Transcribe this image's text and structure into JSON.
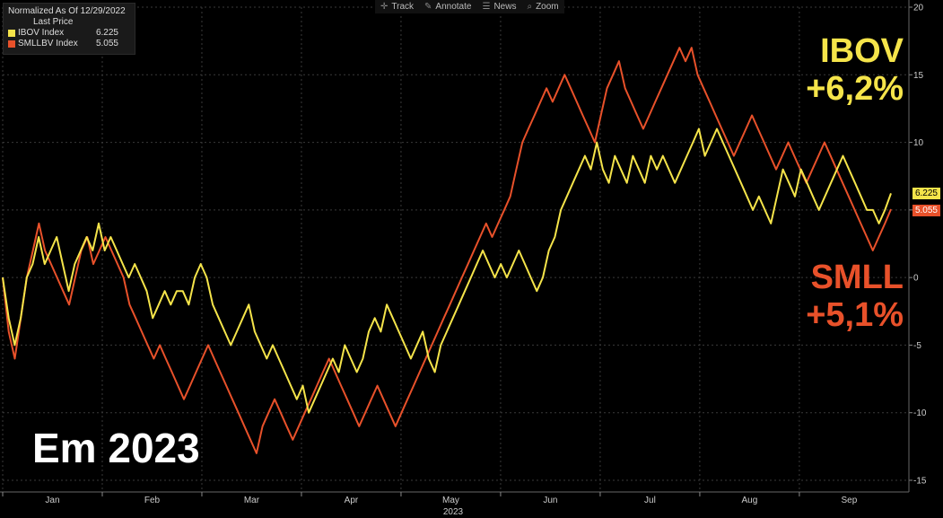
{
  "legend": {
    "heading": "Normalized As Of 12/29/2022",
    "subheading": "Last Price",
    "items": [
      {
        "name": "IBOV Index",
        "value": "6.225",
        "color": "#f5e44a"
      },
      {
        "name": "SMLLBV Index",
        "value": "5.055",
        "color": "#e8512a"
      }
    ]
  },
  "toolbar": {
    "items": [
      {
        "label": "Track",
        "icon": "crosshair-icon",
        "glyph": "✛"
      },
      {
        "label": "Annotate",
        "icon": "pencil-icon",
        "glyph": "✎"
      },
      {
        "label": "News",
        "icon": "news-icon",
        "glyph": "☰"
      },
      {
        "label": "Zoom",
        "icon": "magnifier-icon",
        "glyph": "⌕"
      }
    ]
  },
  "annotations": {
    "ibov_line1": "IBOV",
    "ibov_line2": "+6,2%",
    "smll_line1": "SMLL",
    "smll_line2": "+5,1%",
    "em_2023": "Em 2023"
  },
  "price_tags": {
    "ibov": "6.225",
    "smll": "5.055"
  },
  "chart_data": {
    "type": "line",
    "xlabel": "2023",
    "months": [
      "Jan",
      "Feb",
      "Mar",
      "Apr",
      "May",
      "Jun",
      "Jul",
      "Aug",
      "Sep"
    ],
    "ylim": [
      -15,
      20
    ],
    "yticks": [
      20,
      15,
      10,
      5,
      0,
      -5,
      -10,
      -15
    ],
    "grid": true,
    "legend_position": "top-left",
    "series": [
      {
        "name": "IBOV Index",
        "color": "#f5e44a",
        "values": [
          0,
          -3,
          -5,
          -3,
          0,
          1,
          3,
          1,
          2,
          3,
          1,
          -1,
          1,
          2,
          3,
          2,
          4,
          2,
          3,
          2,
          1,
          0,
          1,
          0,
          -1,
          -3,
          -2,
          -1,
          -2,
          -1,
          -1,
          -2,
          0,
          1,
          0,
          -2,
          -3,
          -4,
          -5,
          -4,
          -3,
          -2,
          -4,
          -5,
          -6,
          -5,
          -6,
          -7,
          -8,
          -9,
          -8,
          -10,
          -9,
          -8,
          -7,
          -6,
          -7,
          -5,
          -6,
          -7,
          -6,
          -4,
          -3,
          -4,
          -2,
          -3,
          -4,
          -5,
          -6,
          -5,
          -4,
          -6,
          -7,
          -5,
          -4,
          -3,
          -2,
          -1,
          0,
          1,
          2,
          1,
          0,
          1,
          0,
          1,
          2,
          1,
          0,
          -1,
          0,
          2,
          3,
          5,
          6,
          7,
          8,
          9,
          8,
          10,
          8,
          7,
          9,
          8,
          7,
          9,
          8,
          7,
          9,
          8,
          9,
          8,
          7,
          8,
          9,
          10,
          11,
          9,
          10,
          11,
          10,
          9,
          8,
          7,
          6,
          5,
          6,
          5,
          4,
          6,
          8,
          7,
          6,
          8,
          7,
          6,
          5,
          6,
          7,
          8,
          9,
          8,
          7,
          6,
          5,
          5,
          4,
          5,
          6.225
        ]
      },
      {
        "name": "SMLLBV Index",
        "color": "#e8512a",
        "values": [
          0,
          -4,
          -6,
          -3,
          0,
          2,
          4,
          2,
          1,
          0,
          -1,
          -2,
          0,
          2,
          3,
          1,
          2,
          3,
          2,
          1,
          0,
          -2,
          -3,
          -4,
          -5,
          -6,
          -5,
          -6,
          -7,
          -8,
          -9,
          -8,
          -7,
          -6,
          -5,
          -6,
          -7,
          -8,
          -9,
          -10,
          -11,
          -12,
          -13,
          -11,
          -10,
          -9,
          -10,
          -11,
          -12,
          -11,
          -10,
          -9,
          -8,
          -7,
          -6,
          -7,
          -8,
          -9,
          -10,
          -11,
          -10,
          -9,
          -8,
          -9,
          -10,
          -11,
          -10,
          -9,
          -8,
          -7,
          -6,
          -5,
          -4,
          -3,
          -2,
          -1,
          0,
          1,
          2,
          3,
          4,
          3,
          4,
          5,
          6,
          8,
          10,
          11,
          12,
          13,
          14,
          13,
          14,
          15,
          14,
          13,
          12,
          11,
          10,
          12,
          14,
          15,
          16,
          14,
          13,
          12,
          11,
          12,
          13,
          14,
          15,
          16,
          17,
          16,
          17,
          15,
          14,
          13,
          12,
          11,
          10,
          9,
          10,
          11,
          12,
          11,
          10,
          9,
          8,
          9,
          10,
          9,
          8,
          7,
          8,
          9,
          10,
          9,
          8,
          7,
          6,
          5,
          4,
          3,
          2,
          3,
          4,
          5.055
        ]
      }
    ]
  }
}
